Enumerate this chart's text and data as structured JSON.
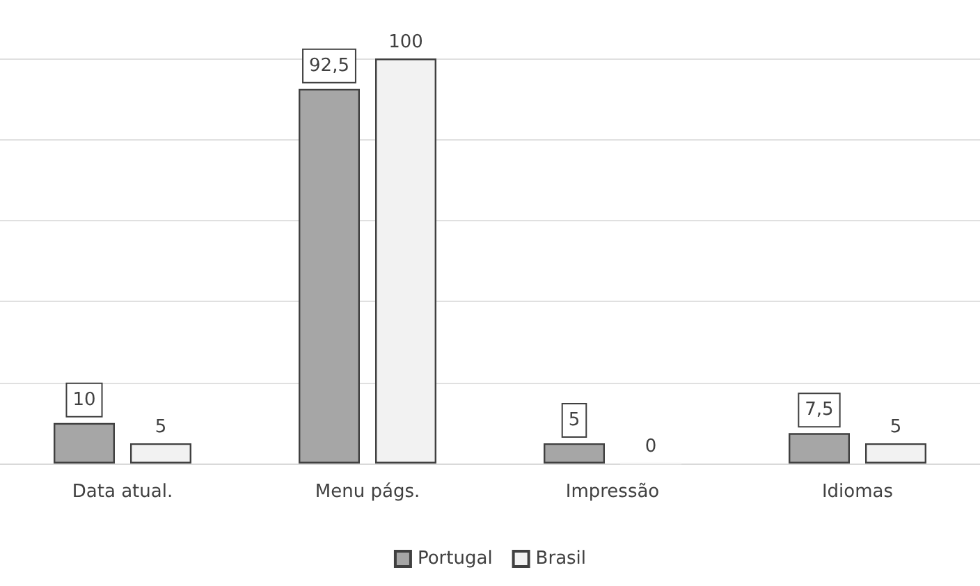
{
  "chart_data": {
    "type": "bar",
    "categories": [
      "Data atual.",
      "Menu págs.",
      "Impressão",
      "Idiomas"
    ],
    "series": [
      {
        "name": "Portugal",
        "color": "#a6a6a6",
        "values": [
          10,
          92.5,
          5,
          7.5
        ],
        "value_labels": [
          "10",
          "92,5",
          "5",
          "7,5"
        ]
      },
      {
        "name": "Brasil",
        "color": "#f2f2f2",
        "values": [
          5,
          100,
          0,
          5
        ],
        "value_labels": [
          "5",
          "100",
          "0",
          "5"
        ]
      }
    ],
    "ylim": [
      0,
      100
    ],
    "yticks": [
      {
        "value": 0,
        "label": null
      },
      {
        "value": 20,
        "label": null
      },
      {
        "value": 40,
        "label": null
      },
      {
        "value": 60,
        "label": null
      },
      {
        "value": 80,
        "label": null
      },
      {
        "value": 100,
        "label": null
      }
    ],
    "grid": "y",
    "legend": "bottom",
    "tick_labels": "x"
  }
}
